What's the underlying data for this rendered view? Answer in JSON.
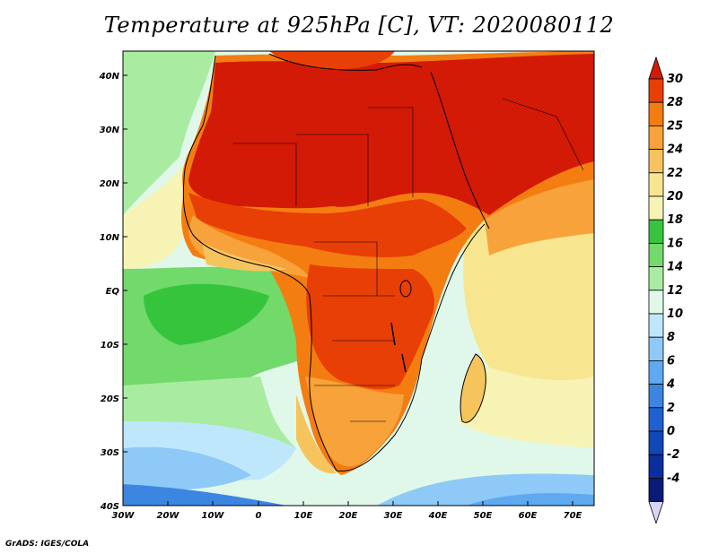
{
  "title": "Temperature at 925hPa [C], VT: 2020080112",
  "credit": "GrADS: IGES/COLA",
  "map": {
    "lat_labels": [
      "40N",
      "30N",
      "20N",
      "10N",
      "EQ",
      "10S",
      "20S",
      "30S",
      "40S"
    ],
    "lon_labels": [
      "30W",
      "20W",
      "10W",
      "0",
      "10E",
      "20E",
      "30E",
      "40E",
      "50E",
      "60E",
      "70E"
    ]
  },
  "colorbar": {
    "labels": [
      "30",
      "28",
      "25",
      "24",
      "22",
      "20",
      "18",
      "16",
      "14",
      "12",
      "10",
      "8",
      "6",
      "4",
      "2",
      "0",
      "-2",
      "-4"
    ],
    "colors": [
      "#d31a07",
      "#e83f06",
      "#f47d12",
      "#f7a23a",
      "#f6c45d",
      "#f8e58f",
      "#f6f3b5",
      "#36c43d",
      "#72d96b",
      "#a9eca1",
      "#e0f8e9",
      "#bfe7fb",
      "#8ec9f7",
      "#5ea9ef",
      "#3c86e2",
      "#1f61d1",
      "#1147b8",
      "#0a2ea0",
      "#0b1a78",
      "#d9d5f5"
    ]
  }
}
